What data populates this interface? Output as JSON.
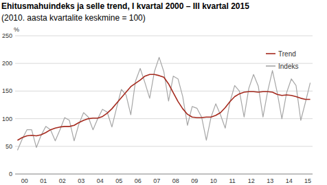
{
  "chart_data": {
    "type": "line",
    "title": "Ehitusmahuindeks ja selle trend, I kvartal 2000 – III kvartal 2015",
    "subtitle": "(2010. aasta kvartalite keskmine = 100)",
    "y_label": "%",
    "categories": [
      "00",
      null,
      null,
      null,
      "01",
      null,
      null,
      null,
      "02",
      null,
      null,
      null,
      "03",
      null,
      null,
      null,
      "04",
      null,
      null,
      null,
      "05",
      null,
      null,
      null,
      "06",
      null,
      null,
      null,
      "07",
      null,
      null,
      null,
      "08",
      null,
      null,
      null,
      "09",
      null,
      null,
      null,
      "10",
      null,
      null,
      null,
      "11",
      null,
      null,
      null,
      "12",
      null,
      null,
      null,
      "13",
      null,
      null,
      null,
      "14",
      null,
      null,
      null,
      "15",
      null,
      null
    ],
    "series": [
      {
        "name": "Trend",
        "color": "#a52a1e",
        "values": [
          61,
          66,
          69,
          70,
          69,
          71,
          75,
          80,
          83,
          85,
          86,
          86,
          88,
          93,
          97,
          100,
          101,
          101,
          104,
          110,
          118,
          128,
          138,
          148,
          158,
          164,
          170,
          177,
          180,
          180,
          178,
          175,
          163,
          147,
          131,
          118,
          108,
          103,
          102,
          102,
          103,
          103,
          106,
          111,
          120,
          131,
          140,
          145,
          148,
          149,
          149,
          148,
          149,
          149,
          148,
          144,
          142,
          143,
          142,
          140,
          137,
          135,
          135
        ]
      },
      {
        "name": "Indeks",
        "color": "#a6a6a6",
        "values": [
          43,
          63,
          80,
          80,
          48,
          70,
          86,
          80,
          60,
          80,
          102,
          97,
          60,
          90,
          111,
          103,
          80,
          100,
          117,
          112,
          85,
          120,
          153,
          143,
          107,
          168,
          191,
          165,
          137,
          185,
          211,
          185,
          132,
          177,
          172,
          140,
          88,
          122,
          119,
          103,
          61,
          103,
          127,
          107,
          83,
          130,
          160,
          150,
          103,
          155,
          180,
          159,
          103,
          150,
          187,
          148,
          100,
          147,
          172,
          160,
          97,
          130,
          165
        ]
      }
    ],
    "ylim": [
      0,
      250
    ],
    "yticks": [
      0,
      50,
      100,
      150,
      200,
      250
    ],
    "grid": true,
    "legend": "upper right"
  }
}
